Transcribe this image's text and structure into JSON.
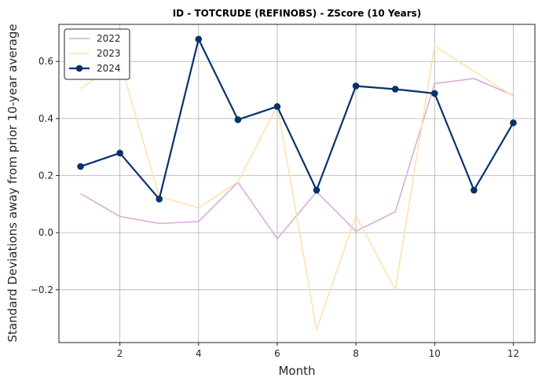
{
  "chart_data": {
    "type": "line",
    "title": "ID - TOTCRUDE (REFINOBS) - ZScore (10 Years)",
    "xlabel": "Month",
    "ylabel": "Standard Deviations away from prior 10-year average",
    "x": [
      1,
      2,
      3,
      4,
      5,
      6,
      7,
      8,
      9,
      10,
      11,
      12
    ],
    "xlim": [
      0.45,
      12.55
    ],
    "ylim": [
      -0.385,
      0.73
    ],
    "xticks": [
      2,
      4,
      6,
      8,
      10,
      12
    ],
    "yticks": [
      -0.2,
      0.0,
      0.2,
      0.4,
      0.6
    ],
    "ytick_labels": [
      "−0.2",
      "0.0",
      "0.2",
      "0.4",
      "0.6"
    ],
    "grid": true,
    "legend_position": "top-left",
    "series": [
      {
        "name": "2022",
        "color": "#d9a8d9",
        "marker": false,
        "values": [
          0.137,
          0.057,
          0.032,
          0.039,
          0.177,
          -0.021,
          0.143,
          0.005,
          0.073,
          0.523,
          0.54,
          0.481
        ]
      },
      {
        "name": "2023",
        "color": "#ffe0a8",
        "marker": false,
        "values": [
          0.505,
          0.6,
          0.127,
          0.087,
          0.178,
          0.445,
          -0.34,
          0.06,
          -0.2,
          0.655,
          0.565,
          0.478
        ]
      },
      {
        "name": "2024",
        "color": "#06326b",
        "marker": true,
        "values": [
          0.232,
          0.279,
          0.118,
          0.678,
          0.396,
          0.442,
          0.149,
          0.514,
          0.503,
          0.488,
          0.149,
          0.385
        ]
      }
    ]
  }
}
